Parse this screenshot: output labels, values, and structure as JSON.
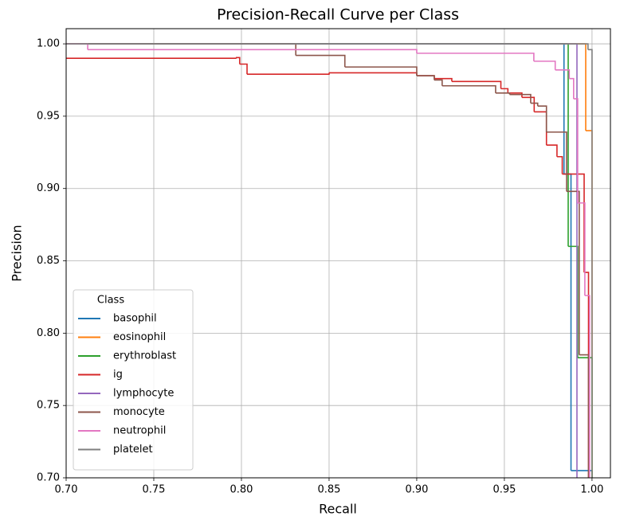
{
  "chart_data": {
    "type": "line",
    "drawstyle": "steps-post",
    "title": "Precision-Recall Curve per Class",
    "x_label": "Recall",
    "y_label": "Precision",
    "xlim": [
      0.7,
      1.0105
    ],
    "ylim": [
      0.7,
      1.0105
    ],
    "xticks": [
      {
        "value": 0.7,
        "label": "0.70"
      },
      {
        "value": 0.75,
        "label": "0.75"
      },
      {
        "value": 0.8,
        "label": "0.80"
      },
      {
        "value": 0.85,
        "label": "0.85"
      },
      {
        "value": 0.9,
        "label": "0.90"
      },
      {
        "value": 0.95,
        "label": "0.95"
      },
      {
        "value": 1.0,
        "label": "1.00"
      }
    ],
    "yticks": [
      {
        "value": 0.7,
        "label": "0.70"
      },
      {
        "value": 0.75,
        "label": "0.75"
      },
      {
        "value": 0.8,
        "label": "0.80"
      },
      {
        "value": 0.85,
        "label": "0.85"
      },
      {
        "value": 0.9,
        "label": "0.90"
      },
      {
        "value": 0.95,
        "label": "0.95"
      },
      {
        "value": 1.0,
        "label": "1.00"
      }
    ],
    "grid": true,
    "legend_title": "Class",
    "legend_position": "lower-left",
    "series": [
      {
        "name": "basophil",
        "color": "#1f77b4",
        "x": [
          0.7,
          0.984,
          0.988,
          1.0
        ],
        "y": [
          1.0,
          0.91,
          0.705,
          0.68
        ]
      },
      {
        "name": "eosinophil",
        "color": "#ff7f0e",
        "x": [
          0.7,
          0.9964,
          1.0
        ],
        "y": [
          1.0,
          0.94,
          0.68
        ]
      },
      {
        "name": "erythroblast",
        "color": "#2ca02c",
        "x": [
          0.7,
          0.9864,
          0.9918,
          1.0
        ],
        "y": [
          1.0,
          0.86,
          0.783,
          0.68
        ]
      },
      {
        "name": "ig",
        "color": "#d62728",
        "x": [
          0.7,
          0.7968,
          0.799,
          0.8032,
          0.85,
          0.9,
          0.91,
          0.92,
          0.948,
          0.952,
          0.96,
          0.967,
          0.974,
          0.98,
          0.983,
          0.9955,
          0.998
        ],
        "y": [
          0.99,
          0.9905,
          0.986,
          0.979,
          0.98,
          0.978,
          0.976,
          0.974,
          0.969,
          0.966,
          0.963,
          0.953,
          0.93,
          0.922,
          0.91,
          0.842,
          0.68
        ]
      },
      {
        "name": "lymphocyte",
        "color": "#9467bd",
        "x": [
          0.7,
          0.9914
        ],
        "y": [
          1.0,
          0.68
        ]
      },
      {
        "name": "monocyte",
        "color": "#8c564b",
        "x": [
          0.7,
          0.831,
          0.859,
          0.9,
          0.91,
          0.9145,
          0.945,
          0.953,
          0.965,
          0.969,
          0.974,
          0.9855,
          0.9927,
          0.998
        ],
        "y": [
          1.0,
          0.992,
          0.984,
          0.978,
          0.975,
          0.971,
          0.966,
          0.965,
          0.959,
          0.957,
          0.939,
          0.898,
          0.785,
          0.68
        ]
      },
      {
        "name": "neutrophil",
        "color": "#e377c2",
        "x": [
          0.7,
          0.7123,
          0.9,
          0.9668,
          0.979,
          0.987,
          0.9895,
          0.9918,
          0.9959,
          0.9986
        ],
        "y": [
          1.0,
          0.996,
          0.9935,
          0.988,
          0.982,
          0.976,
          0.962,
          0.89,
          0.826,
          0.68
        ]
      },
      {
        "name": "platelet",
        "color": "#7f7f7f",
        "x": [
          0.7,
          0.9977,
          1.0
        ],
        "y": [
          1.0,
          0.996,
          0.68
        ]
      }
    ]
  }
}
